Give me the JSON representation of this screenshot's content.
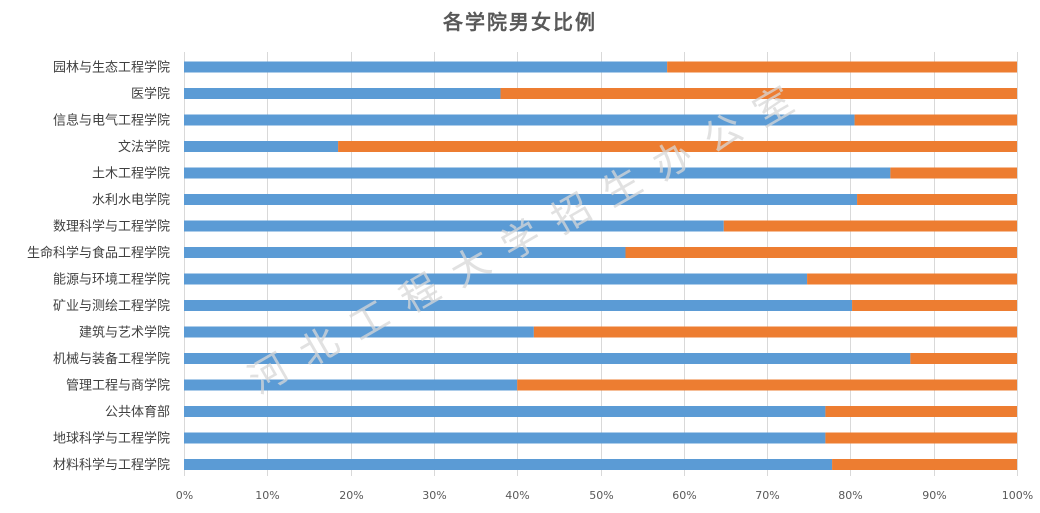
{
  "chart_data": {
    "type": "bar",
    "orientation": "horizontal",
    "stacked": "percent",
    "title": "各学院男女比例",
    "categories": [
      "园林与生态工程学院",
      "医学院",
      "信息与电气工程学院",
      "文法学院",
      "土木工程学院",
      "水利水电学院",
      "数理科学与工程学院",
      "生命科学与食品工程学院",
      "能源与环境工程学院",
      "矿业与测绘工程学院",
      "建筑与艺术学院",
      "机械与装备工程学院",
      "管理工程与商学院",
      "公共体育部",
      "地球科学与工程学院",
      "材料科学与工程学院"
    ],
    "series": [
      {
        "color": "#5b9bd5",
        "values": [
          58,
          38,
          80.5,
          18.5,
          84.8,
          80.8,
          64.8,
          53,
          74.8,
          80.2,
          42,
          87.2,
          40,
          77,
          77,
          77.8
        ]
      },
      {
        "color": "#ed7d31",
        "values": [
          42,
          62,
          19.5,
          81.5,
          15.2,
          19.2,
          35.2,
          47,
          25.2,
          19.8,
          58,
          12.8,
          60,
          23,
          23,
          22.2
        ]
      }
    ],
    "xlim": [
      0,
      100
    ],
    "xticks": [
      "0%",
      "10%",
      "20%",
      "30%",
      "40%",
      "50%",
      "60%",
      "70%",
      "80%",
      "90%",
      "100%"
    ],
    "grid": true,
    "legend": "none"
  },
  "watermark": {
    "text": "河北工程大学招生办公室"
  }
}
